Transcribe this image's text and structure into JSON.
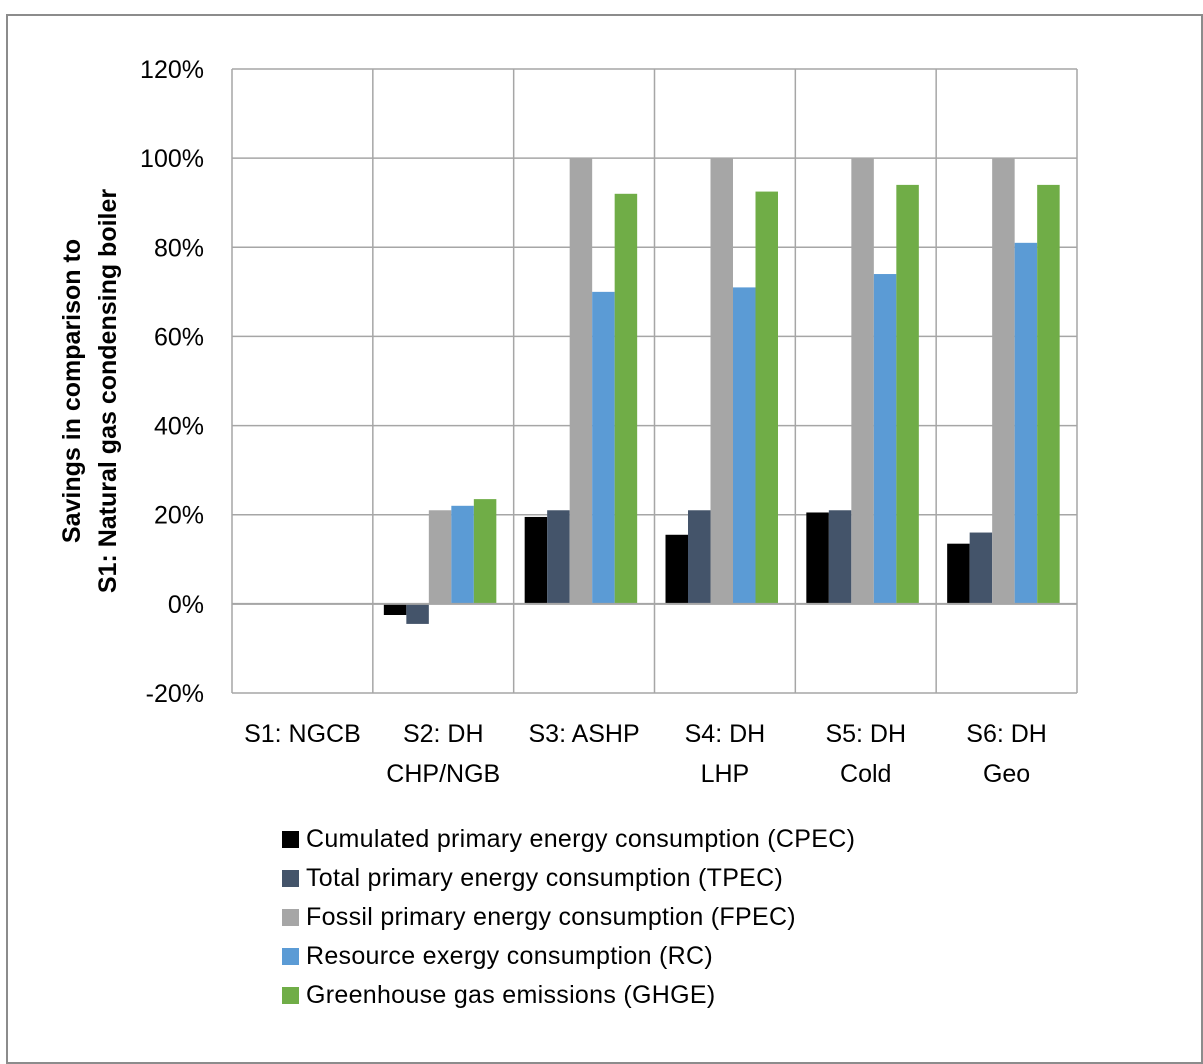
{
  "chart_data": {
    "type": "bar",
    "ylabel_lines": [
      "Savings in comparison to",
      "S1: Natural gas condensing boiler"
    ],
    "categories": [
      [
        "S1: NGCB"
      ],
      [
        "S2: DH",
        "CHP/NGB"
      ],
      [
        "S3: ASHP"
      ],
      [
        "S4: DH",
        "LHP"
      ],
      [
        "S5: DH",
        "Cold"
      ],
      [
        "S6: DH",
        "Geo"
      ]
    ],
    "ylim": [
      -20,
      120
    ],
    "yticks": [
      -20,
      0,
      20,
      40,
      60,
      80,
      100,
      120
    ],
    "ytick_labels": [
      "-20%",
      "0%",
      "20%",
      "40%",
      "60%",
      "80%",
      "100%",
      "120%"
    ],
    "grid": true,
    "legend_position": "bottom",
    "series": [
      {
        "name": "Cumulated primary energy consumption (CPEC)",
        "color": "#000000",
        "values": [
          0,
          -2.5,
          19.5,
          15.5,
          20.5,
          13.5
        ]
      },
      {
        "name": "Total primary energy consumption (TPEC)",
        "color": "#44546a",
        "values": [
          0,
          -4.5,
          21,
          21,
          21,
          16
        ]
      },
      {
        "name": "Fossil primary energy consumption (FPEC)",
        "color": "#a6a6a6",
        "values": [
          0,
          21,
          100,
          100,
          100,
          100
        ]
      },
      {
        "name": "Resource exergy consumption (RC)",
        "color": "#5b9bd5",
        "values": [
          0,
          22,
          70,
          71,
          74,
          81
        ]
      },
      {
        "name": "Greenhouse gas emissions (GHGE)",
        "color": "#70ad47",
        "values": [
          0,
          23.5,
          92,
          92.5,
          94,
          94
        ]
      }
    ]
  }
}
